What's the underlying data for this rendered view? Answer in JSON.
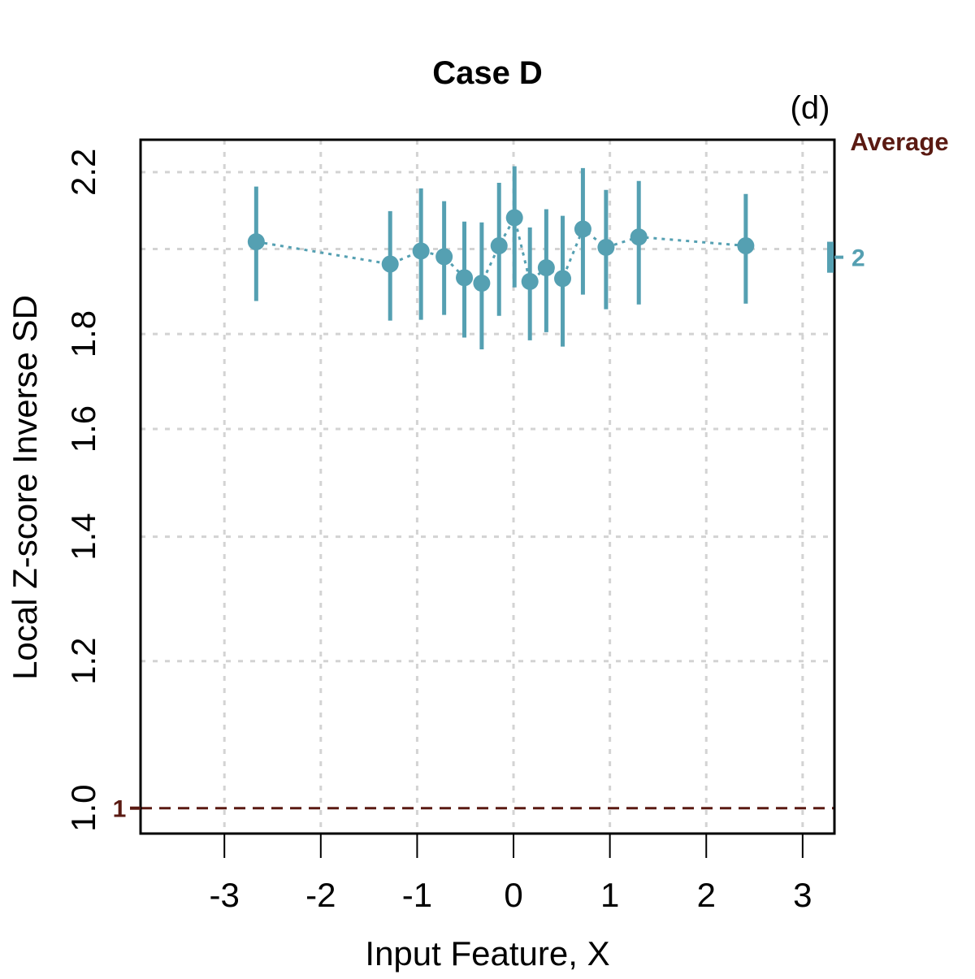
{
  "chart_data": {
    "type": "scatter",
    "title": "Case D",
    "panel_label": "(d)",
    "xlabel": "Input Feature, X",
    "ylabel": "Local Z-score Inverse SD",
    "x_scale": "linear",
    "y_scale": "log",
    "xlim": [
      -3.87,
      3.33
    ],
    "ylim": [
      0.969,
      2.29
    ],
    "grid": true,
    "x_ticks": [
      -3,
      -2,
      -1,
      0,
      1,
      2,
      3
    ],
    "x_tick_labels": [
      "-3",
      "-2",
      "-1",
      "0",
      "1",
      "2",
      "3"
    ],
    "y_ticks": [
      1.0,
      1.2,
      1.4,
      1.6,
      1.8,
      2.0,
      2.2
    ],
    "y_tick_labels": [
      "1.0",
      "1.2",
      "1.4",
      "1.6",
      "1.8",
      "",
      "2.2"
    ],
    "series": [
      {
        "name": "Local Z-score Inverse SD",
        "color": "#55a0b2",
        "x": [
          -2.67,
          -1.28,
          -0.96,
          -0.72,
          -0.51,
          -0.33,
          -0.15,
          0.01,
          0.17,
          0.34,
          0.51,
          0.72,
          0.96,
          1.3,
          2.41
        ],
        "y": [
          2.018,
          1.963,
          1.995,
          1.981,
          1.93,
          1.917,
          2.008,
          2.079,
          1.921,
          1.954,
          1.928,
          2.05,
          2.004,
          2.03,
          2.008
        ],
        "y_low": [
          1.875,
          1.83,
          1.832,
          1.843,
          1.792,
          1.766,
          1.841,
          1.907,
          1.786,
          1.804,
          1.772,
          1.89,
          1.856,
          1.867,
          1.869
        ],
        "y_high": [
          2.161,
          2.096,
          2.156,
          2.122,
          2.069,
          2.067,
          2.171,
          2.216,
          2.054,
          2.101,
          2.084,
          2.211,
          2.152,
          2.176,
          2.141
        ]
      }
    ],
    "average": {
      "title": "Average",
      "title_color": "#5a1a12",
      "low": 1.942,
      "high": 2.018,
      "label": "2",
      "color": "#55a0b2"
    },
    "reference_line": {
      "value": 1.0,
      "label": "1",
      "color": "#5a1a12",
      "style": "dashed"
    }
  }
}
